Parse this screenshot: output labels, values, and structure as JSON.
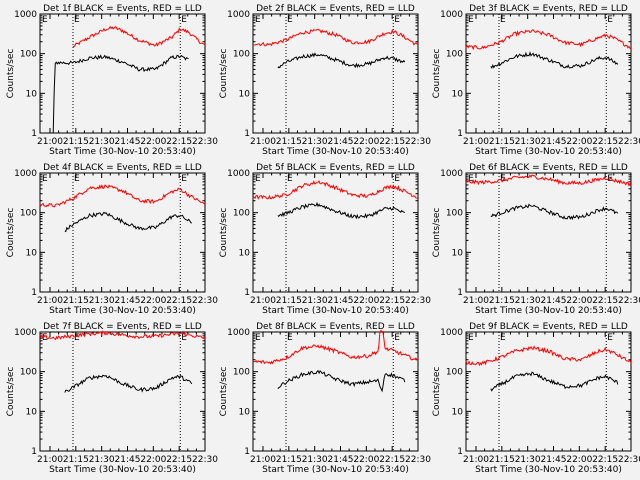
{
  "figure": {
    "x_ticks": [
      "21:00",
      "21:15",
      "21:30",
      "21:45",
      "22:00",
      "22:15",
      "22:30"
    ],
    "y_ticks": [
      "1000",
      "100",
      "10",
      "1"
    ],
    "ylabel": "Counts/sec",
    "xlabel": "Start Time (30-Nov-10 20:53:40)",
    "flag_letters": [
      "E",
      "E"
    ],
    "colors": {
      "events": "#000000",
      "lld": "#ff0000",
      "background": "#f2f2f2"
    }
  },
  "chart_data": [
    {
      "type": "line",
      "title": "Det 1f BLACK = Events, RED = LLD",
      "xlabel": "Start Time (30-Nov-10 20:53:40)",
      "ylabel": "Counts/sec",
      "xlim_min": [
        0,
        100
      ],
      "ylim": [
        1,
        1000
      ],
      "yscale": "log",
      "flags_min": [
        20,
        85
      ],
      "series": [
        {
          "name": "LLD",
          "color": "#ff0000",
          "start": 20,
          "end": 100,
          "points": [
            [
              20,
              150
            ],
            [
              30,
              260
            ],
            [
              40,
              420
            ],
            [
              45,
              450
            ],
            [
              50,
              380
            ],
            [
              60,
              220
            ],
            [
              70,
              160
            ],
            [
              80,
              260
            ],
            [
              85,
              420
            ],
            [
              90,
              350
            ],
            [
              95,
              230
            ],
            [
              100,
              160
            ]
          ]
        },
        {
          "name": "Events",
          "color": "#000000",
          "start": 8,
          "end": 90,
          "points": [
            [
              8,
              1
            ],
            [
              9,
              50
            ],
            [
              10,
              60
            ],
            [
              20,
              58
            ],
            [
              30,
              78
            ],
            [
              40,
              82
            ],
            [
              50,
              62
            ],
            [
              60,
              40
            ],
            [
              70,
              40
            ],
            [
              80,
              80
            ],
            [
              85,
              85
            ],
            [
              90,
              70
            ]
          ]
        }
      ]
    },
    {
      "type": "line",
      "title": "Det 2f BLACK = Events, RED = LLD",
      "xlabel": "Start Time (30-Nov-10 20:53:40)",
      "ylabel": "Counts/sec",
      "xlim_min": [
        0,
        100
      ],
      "ylim": [
        1,
        1000
      ],
      "yscale": "log",
      "flags_min": [
        20,
        85
      ],
      "series": [
        {
          "name": "LLD",
          "color": "#ff0000",
          "start": 0,
          "end": 100,
          "points": [
            [
              0,
              180
            ],
            [
              10,
              170
            ],
            [
              20,
              220
            ],
            [
              30,
              340
            ],
            [
              40,
              380
            ],
            [
              50,
              300
            ],
            [
              60,
              190
            ],
            [
              70,
              200
            ],
            [
              80,
              330
            ],
            [
              85,
              360
            ],
            [
              90,
              290
            ],
            [
              100,
              160
            ]
          ]
        },
        {
          "name": "Events",
          "color": "#000000",
          "start": 15,
          "end": 92,
          "points": [
            [
              15,
              45
            ],
            [
              20,
              60
            ],
            [
              30,
              85
            ],
            [
              40,
              95
            ],
            [
              50,
              70
            ],
            [
              60,
              50
            ],
            [
              70,
              55
            ],
            [
              80,
              80
            ],
            [
              85,
              75
            ],
            [
              92,
              60
            ]
          ]
        }
      ]
    },
    {
      "type": "line",
      "title": "Det 3f BLACK = Events, RED = LLD",
      "xlabel": "Start Time (30-Nov-10 20:53:40)",
      "ylabel": "Counts/sec",
      "xlim_min": [
        0,
        100
      ],
      "ylim": [
        1,
        1000
      ],
      "yscale": "log",
      "flags_min": [
        20,
        85
      ],
      "series": [
        {
          "name": "LLD",
          "color": "#ff0000",
          "start": 0,
          "end": 100,
          "points": [
            [
              0,
              150
            ],
            [
              10,
              140
            ],
            [
              20,
              190
            ],
            [
              30,
              320
            ],
            [
              40,
              370
            ],
            [
              50,
              300
            ],
            [
              60,
              190
            ],
            [
              70,
              170
            ],
            [
              80,
              250
            ],
            [
              85,
              290
            ],
            [
              90,
              240
            ],
            [
              100,
              140
            ]
          ]
        },
        {
          "name": "Events",
          "color": "#000000",
          "start": 15,
          "end": 92,
          "points": [
            [
              15,
              45
            ],
            [
              20,
              55
            ],
            [
              30,
              85
            ],
            [
              40,
              100
            ],
            [
              50,
              70
            ],
            [
              60,
              48
            ],
            [
              70,
              50
            ],
            [
              80,
              75
            ],
            [
              85,
              80
            ],
            [
              92,
              55
            ]
          ]
        }
      ]
    },
    {
      "type": "line",
      "title": "Det 4f BLACK = Events, RED = LLD",
      "xlabel": "Start Time (30-Nov-10 20:53:40)",
      "ylabel": "Counts/sec",
      "xlim_min": [
        0,
        100
      ],
      "ylim": [
        1,
        1000
      ],
      "yscale": "log",
      "flags_min": [
        20,
        85
      ],
      "series": [
        {
          "name": "LLD",
          "color": "#ff0000",
          "start": 0,
          "end": 100,
          "points": [
            [
              0,
              160
            ],
            [
              10,
              150
            ],
            [
              20,
              230
            ],
            [
              30,
              420
            ],
            [
              40,
              460
            ],
            [
              50,
              360
            ],
            [
              60,
              200
            ],
            [
              70,
              190
            ],
            [
              80,
              340
            ],
            [
              85,
              390
            ],
            [
              90,
              280
            ],
            [
              100,
              160
            ]
          ]
        },
        {
          "name": "Events",
          "color": "#000000",
          "start": 15,
          "end": 92,
          "points": [
            [
              15,
              35
            ],
            [
              20,
              50
            ],
            [
              30,
              85
            ],
            [
              40,
              95
            ],
            [
              50,
              60
            ],
            [
              60,
              40
            ],
            [
              70,
              42
            ],
            [
              80,
              80
            ],
            [
              85,
              85
            ],
            [
              92,
              55
            ]
          ]
        }
      ]
    },
    {
      "type": "line",
      "title": "Det 5f BLACK = Events, RED = LLD",
      "xlabel": "Start Time (30-Nov-10 20:53:40)",
      "ylabel": "Counts/sec",
      "xlim_min": [
        0,
        100
      ],
      "ylim": [
        1,
        1000
      ],
      "yscale": "log",
      "flags_min": [
        20,
        85
      ],
      "series": [
        {
          "name": "LLD",
          "color": "#ff0000",
          "start": 0,
          "end": 100,
          "points": [
            [
              0,
              250
            ],
            [
              10,
              240
            ],
            [
              20,
              280
            ],
            [
              30,
              480
            ],
            [
              40,
              600
            ],
            [
              50,
              430
            ],
            [
              60,
              280
            ],
            [
              70,
              260
            ],
            [
              80,
              420
            ],
            [
              85,
              470
            ],
            [
              90,
              380
            ],
            [
              100,
              240
            ]
          ]
        },
        {
          "name": "Events",
          "color": "#000000",
          "start": 15,
          "end": 92,
          "points": [
            [
              15,
              85
            ],
            [
              20,
              95
            ],
            [
              30,
              140
            ],
            [
              40,
              160
            ],
            [
              50,
              110
            ],
            [
              60,
              80
            ],
            [
              70,
              82
            ],
            [
              80,
              125
            ],
            [
              85,
              130
            ],
            [
              92,
              95
            ]
          ]
        }
      ]
    },
    {
      "type": "line",
      "title": "Det 6f BLACK = Events, RED = LLD",
      "xlabel": "Start Time (30-Nov-10 20:53:40)",
      "ylabel": "Counts/sec",
      "xlim_min": [
        0,
        100
      ],
      "ylim": [
        1,
        1000
      ],
      "yscale": "log",
      "flags_min": [
        20,
        85
      ],
      "series": [
        {
          "name": "LLD",
          "color": "#ff0000",
          "start": 0,
          "end": 100,
          "points": [
            [
              0,
              600
            ],
            [
              10,
              580
            ],
            [
              20,
              630
            ],
            [
              30,
              760
            ],
            [
              40,
              820
            ],
            [
              50,
              700
            ],
            [
              60,
              560
            ],
            [
              70,
              560
            ],
            [
              80,
              680
            ],
            [
              85,
              750
            ],
            [
              90,
              650
            ],
            [
              100,
              520
            ]
          ]
        },
        {
          "name": "Events",
          "color": "#000000",
          "start": 15,
          "end": 92,
          "points": [
            [
              15,
              80
            ],
            [
              20,
              95
            ],
            [
              30,
              130
            ],
            [
              40,
              150
            ],
            [
              50,
              105
            ],
            [
              60,
              75
            ],
            [
              70,
              78
            ],
            [
              80,
              115
            ],
            [
              85,
              130
            ],
            [
              92,
              95
            ]
          ]
        }
      ]
    },
    {
      "type": "line",
      "title": "Det 7f BLACK = Events, RED = LLD",
      "xlabel": "Start Time (30-Nov-10 20:53:40)",
      "ylabel": "Counts/sec",
      "xlim_min": [
        0,
        100
      ],
      "ylim": [
        1,
        1000
      ],
      "yscale": "log",
      "flags_min": [
        20,
        85
      ],
      "series": [
        {
          "name": "LLD",
          "color": "#ff0000",
          "start": 0,
          "end": 100,
          "points": [
            [
              0,
              750
            ],
            [
              10,
              700
            ],
            [
              20,
              800
            ],
            [
              30,
              900
            ],
            [
              40,
              950
            ],
            [
              50,
              850
            ],
            [
              60,
              760
            ],
            [
              70,
              780
            ],
            [
              80,
              880
            ],
            [
              85,
              930
            ],
            [
              90,
              850
            ],
            [
              100,
              700
            ]
          ]
        },
        {
          "name": "Events",
          "color": "#000000",
          "start": 15,
          "end": 92,
          "points": [
            [
              15,
              30
            ],
            [
              20,
              40
            ],
            [
              30,
              70
            ],
            [
              40,
              80
            ],
            [
              50,
              50
            ],
            [
              60,
              35
            ],
            [
              70,
              38
            ],
            [
              80,
              70
            ],
            [
              85,
              75
            ],
            [
              92,
              50
            ]
          ]
        }
      ]
    },
    {
      "type": "line",
      "title": "Det 8f BLACK = Events, RED = LLD",
      "xlabel": "Start Time (30-Nov-10 20:53:40)",
      "ylabel": "Counts/sec",
      "xlim_min": [
        0,
        100
      ],
      "ylim": [
        1,
        1000
      ],
      "yscale": "log",
      "flags_min": [
        20,
        85
      ],
      "series": [
        {
          "name": "LLD",
          "color": "#ff0000",
          "start": 0,
          "end": 100,
          "points": [
            [
              0,
              180
            ],
            [
              10,
              170
            ],
            [
              20,
              220
            ],
            [
              30,
              400
            ],
            [
              40,
              440
            ],
            [
              50,
              330
            ],
            [
              60,
              230
            ],
            [
              70,
              250
            ],
            [
              76,
              330
            ],
            [
              77,
              1000
            ],
            [
              78,
              1000
            ],
            [
              79,
              1000
            ],
            [
              80,
              380
            ],
            [
              85,
              340
            ],
            [
              90,
              280
            ],
            [
              100,
              190
            ]
          ]
        },
        {
          "name": "Events",
          "color": "#000000",
          "start": 15,
          "end": 92,
          "points": [
            [
              15,
              40
            ],
            [
              20,
              55
            ],
            [
              30,
              85
            ],
            [
              40,
              100
            ],
            [
              50,
              65
            ],
            [
              60,
              48
            ],
            [
              70,
              55
            ],
            [
              76,
              60
            ],
            [
              78,
              30
            ],
            [
              80,
              90
            ],
            [
              85,
              80
            ],
            [
              92,
              60
            ]
          ]
        }
      ]
    },
    {
      "type": "line",
      "title": "Det 9f BLACK = Events, RED = LLD",
      "xlabel": "Start Time (30-Nov-10 20:53:40)",
      "ylabel": "Counts/sec",
      "xlim_min": [
        0,
        100
      ],
      "ylim": [
        1,
        1000
      ],
      "yscale": "log",
      "flags_min": [
        20,
        85
      ],
      "series": [
        {
          "name": "LLD",
          "color": "#ff0000",
          "start": 0,
          "end": 100,
          "points": [
            [
              0,
              170
            ],
            [
              10,
              160
            ],
            [
              20,
              220
            ],
            [
              30,
              330
            ],
            [
              40,
              400
            ],
            [
              50,
              330
            ],
            [
              60,
              210
            ],
            [
              70,
              200
            ],
            [
              80,
              320
            ],
            [
              85,
              360
            ],
            [
              90,
              290
            ],
            [
              100,
              170
            ]
          ]
        },
        {
          "name": "Events",
          "color": "#000000",
          "start": 15,
          "end": 92,
          "points": [
            [
              15,
              35
            ],
            [
              20,
              45
            ],
            [
              30,
              75
            ],
            [
              40,
              90
            ],
            [
              50,
              60
            ],
            [
              60,
              42
            ],
            [
              70,
              45
            ],
            [
              80,
              70
            ],
            [
              85,
              75
            ],
            [
              92,
              52
            ]
          ]
        }
      ]
    }
  ]
}
